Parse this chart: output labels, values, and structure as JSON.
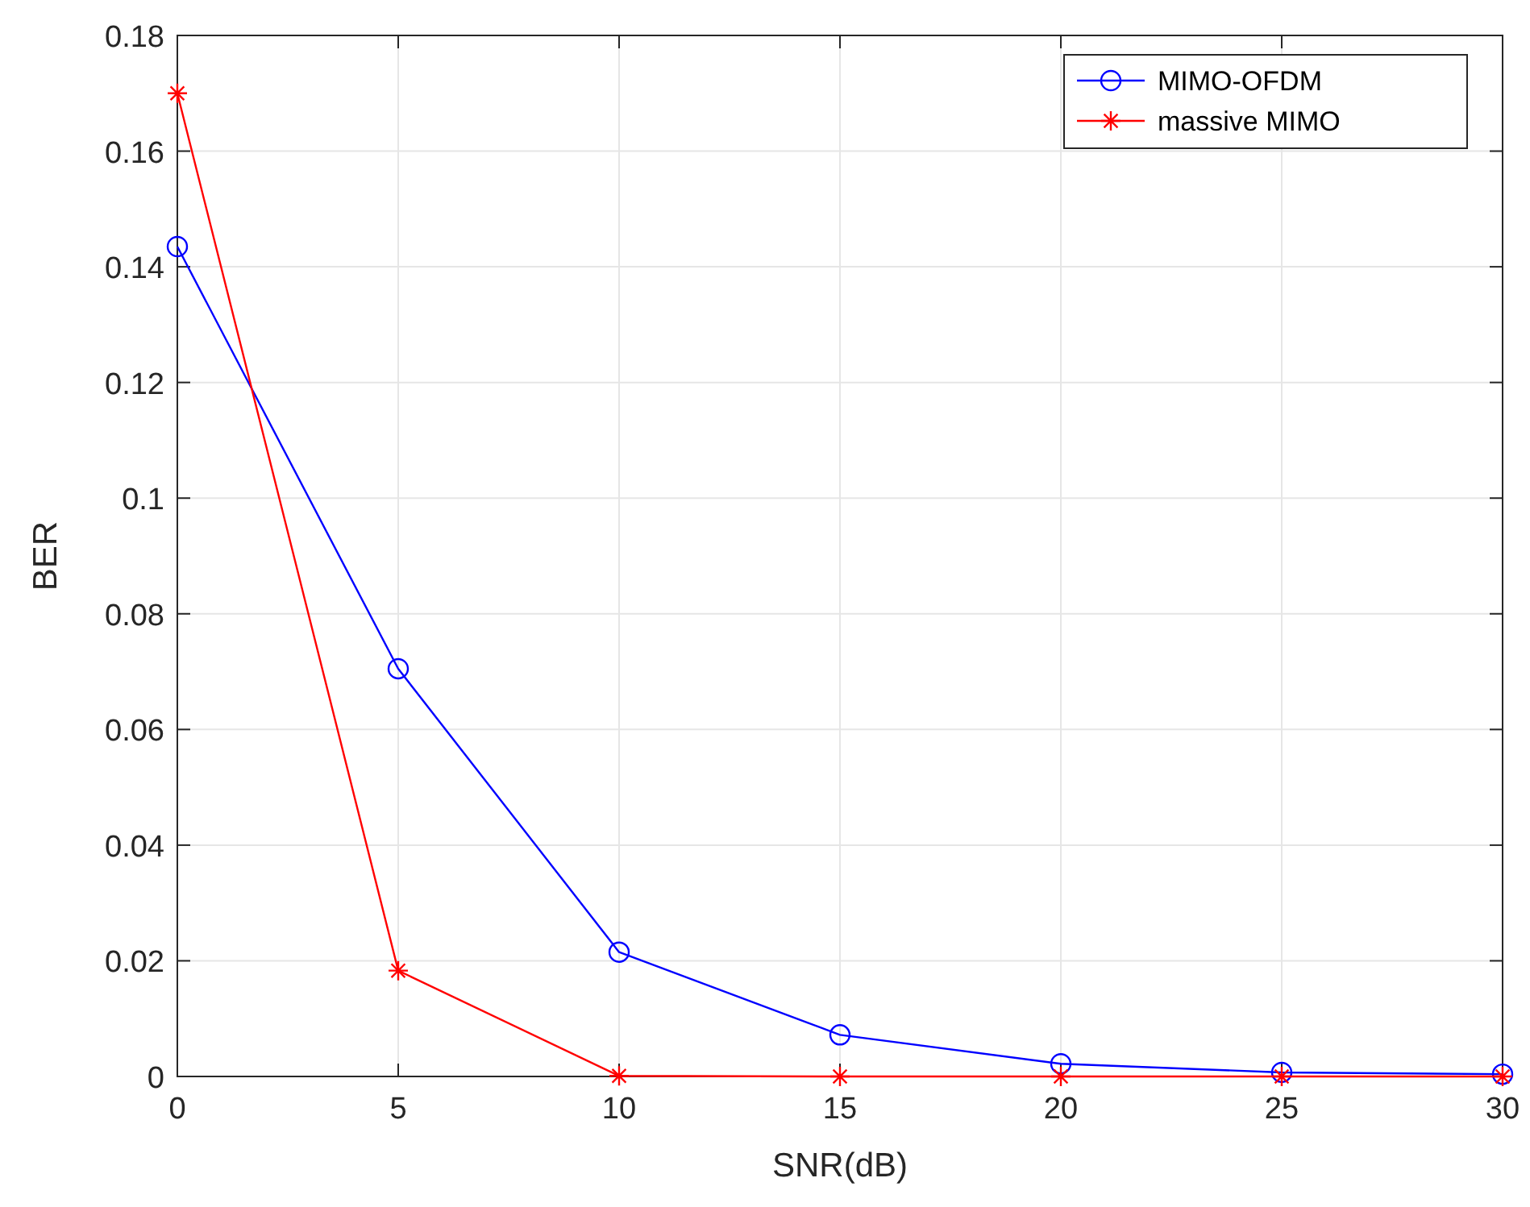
{
  "chart_data": {
    "type": "line",
    "xlabel": "SNR(dB)",
    "ylabel": "BER",
    "x": [
      0,
      5,
      10,
      15,
      20,
      25,
      30
    ],
    "series": [
      {
        "name": "MIMO-OFDM",
        "color": "#0000ff",
        "marker": "circle",
        "values": [
          0.1435,
          0.0705,
          0.0215,
          0.0072,
          0.0022,
          0.0007,
          0.0004
        ]
      },
      {
        "name": "massive MIMO",
        "color": "#ff0000",
        "marker": "cross",
        "values": [
          0.17,
          0.0183,
          0.0001,
          0,
          0,
          0,
          0
        ]
      }
    ],
    "xlim": [
      0,
      30
    ],
    "xticks": [
      0,
      5,
      10,
      15,
      20,
      25,
      30
    ],
    "ylim": [
      0,
      0.18
    ],
    "yticks": [
      0,
      0.02,
      0.04,
      0.06,
      0.08,
      {
        "value": 0.1,
        "label": "0.1"
      },
      0.12,
      0.14,
      0.16,
      0.18
    ],
    "grid": true,
    "legend": "top right",
    "line_style": "solid"
  }
}
